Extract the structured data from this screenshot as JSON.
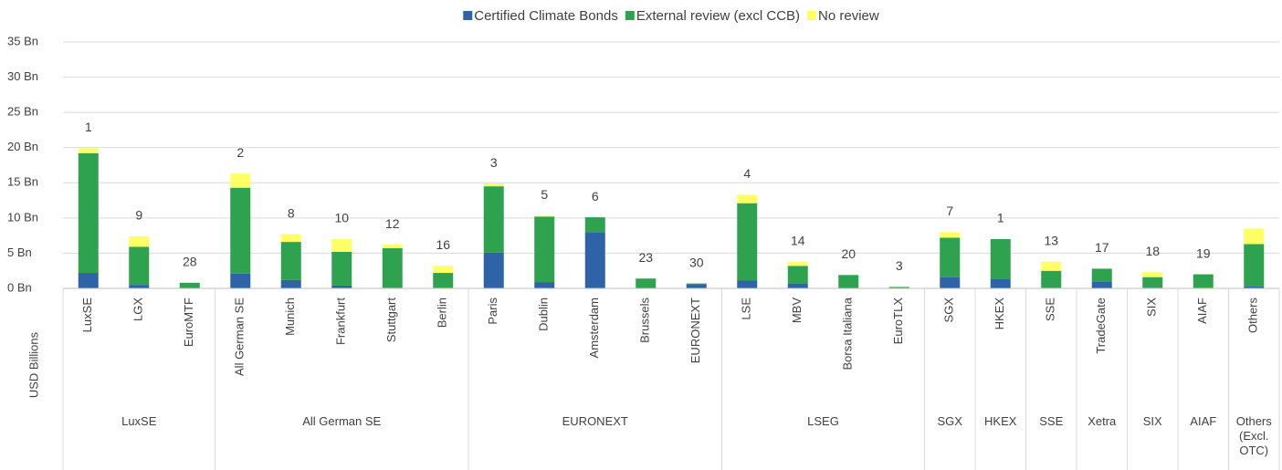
{
  "chart_data": {
    "type": "stacked_bar",
    "y_axis_label": "USD Billions",
    "categories": [
      "LuxSE",
      "LGX",
      "EuroMTF",
      "All German SE",
      "Munich",
      "Frankfurt",
      "Stuttgart",
      "Berlin",
      "Paris",
      "Dublin",
      "Amsterdam",
      "Brussels",
      "EURONEXT",
      "LSE",
      "MBV",
      "Borsa Italiana",
      "EuroTLX",
      "SGX",
      "HKEX",
      "SSE",
      "TradeGate",
      "SIX",
      "AIAF",
      "Others"
    ],
    "category_groups": [
      "LuxSE",
      "LuxSE",
      "LuxSE",
      "All German SE",
      "All German SE",
      "All German SE",
      "All German SE",
      "All German SE",
      "EURONEXT",
      "EURONEXT",
      "EURONEXT",
      "EURONEXT",
      "EURONEXT",
      "LSEG",
      "LSEG",
      "LSEG",
      "LSEG",
      "SGX",
      "HKEX",
      "SSE",
      "Xetra",
      "SIX",
      "AIAF",
      "Others (Excl. OTC)"
    ],
    "series": [
      {
        "name": "Certified Climate Bonds",
        "color": "#2e64a7",
        "values": [
          2.2,
          0.5,
          0,
          2.1,
          1.2,
          0.4,
          0.1,
          0.1,
          5.1,
          0.9,
          8.0,
          0,
          0.6,
          1.1,
          0.7,
          0,
          0,
          1.6,
          1.3,
          0.1,
          1.0,
          0.1,
          0.1,
          0.3
        ]
      },
      {
        "name": "External review (excl CCB)",
        "color": "#2ea24e",
        "values": [
          17.0,
          5.4,
          0.8,
          12.2,
          5.4,
          4.8,
          5.6,
          2.1,
          9.4,
          9.3,
          2.1,
          1.4,
          0.1,
          11.0,
          2.5,
          1.9,
          0.2,
          5.6,
          5.7,
          2.4,
          1.8,
          1.5,
          1.9,
          6.0
        ]
      },
      {
        "name": "No review",
        "color": "#ffff66",
        "values": [
          0.7,
          1.5,
          0,
          2.0,
          1.1,
          1.8,
          0.5,
          1.0,
          0.4,
          0.1,
          0,
          0,
          0,
          1.2,
          0.6,
          0,
          0,
          0.8,
          0,
          1.3,
          0,
          0.7,
          0,
          2.2
        ]
      }
    ],
    "rank_labels": [
      1,
      9,
      28,
      2,
      8,
      10,
      12,
      16,
      3,
      5,
      6,
      23,
      30,
      4,
      14,
      20,
      3,
      7,
      1,
      13,
      17,
      18,
      19,
      null
    ],
    "ylim": [
      0,
      35
    ],
    "yticks": [
      {
        "value": 0,
        "label": "0 Bn"
      },
      {
        "value": 5,
        "label": "5 Bn"
      },
      {
        "value": 10,
        "label": "10 Bn"
      },
      {
        "value": 15,
        "label": "15 Bn"
      },
      {
        "value": 20,
        "label": "20 Bn"
      },
      {
        "value": 25,
        "label": "25 Bn"
      },
      {
        "value": 30,
        "label": "30 Bn"
      },
      {
        "value": 35,
        "label": "35 Bn"
      }
    ],
    "grid": true,
    "legend": "top"
  }
}
